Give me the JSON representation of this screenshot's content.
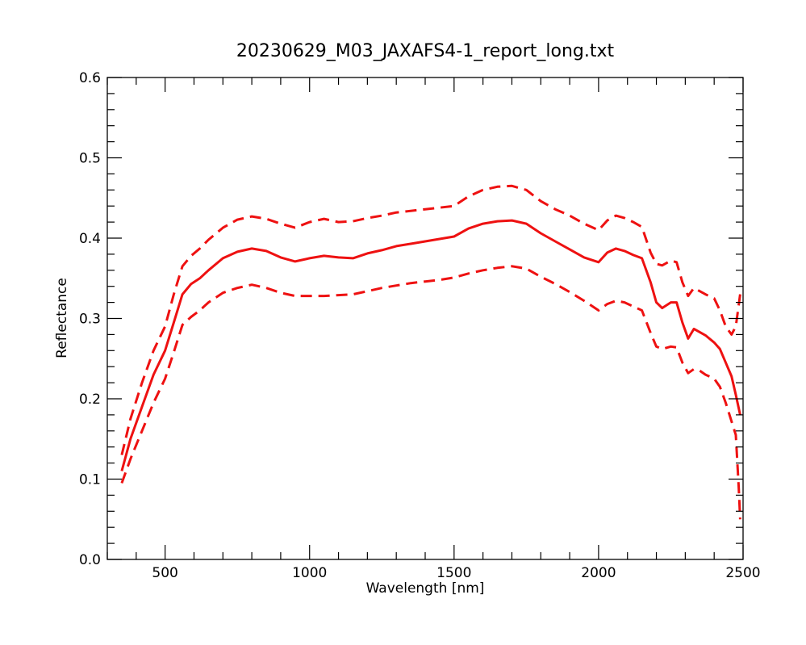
{
  "chart_data": {
    "type": "line",
    "title": "20230629_M03_JAXAFS4-1_report_long.txt",
    "xlabel": "Wavelength [nm]",
    "ylabel": "Reflectance",
    "xlim": [
      300,
      2500
    ],
    "ylim": [
      0.0,
      0.6
    ],
    "x_ticks": [
      {
        "value": 500,
        "label": "500"
      },
      {
        "value": 1000,
        "label": "1000"
      },
      {
        "value": 1500,
        "label": "1500"
      },
      {
        "value": 2000,
        "label": "2000"
      },
      {
        "value": 2500,
        "label": "2500"
      }
    ],
    "y_ticks": [
      {
        "value": 0.0,
        "label": "0.0"
      },
      {
        "value": 0.1,
        "label": "0.1"
      },
      {
        "value": 0.2,
        "label": "0.2"
      },
      {
        "value": 0.3,
        "label": "0.3"
      },
      {
        "value": 0.4,
        "label": "0.4"
      },
      {
        "value": 0.5,
        "label": "0.5"
      },
      {
        "value": 0.6,
        "label": "0.6"
      }
    ],
    "x_minor_step": 100,
    "y_minor_step": 0.02,
    "grid": false,
    "series": [
      {
        "style": "solid",
        "color": "#ee1111",
        "x": [
          350,
          380,
          420,
          460,
          500,
          530,
          560,
          590,
          620,
          650,
          700,
          750,
          800,
          850,
          900,
          950,
          1000,
          1050,
          1100,
          1150,
          1200,
          1250,
          1300,
          1350,
          1400,
          1450,
          1500,
          1550,
          1600,
          1650,
          1700,
          1750,
          1800,
          1850,
          1900,
          1950,
          2000,
          2030,
          2060,
          2090,
          2120,
          2150,
          2180,
          2200,
          2220,
          2250,
          2270,
          2290,
          2310,
          2330,
          2350,
          2370,
          2400,
          2420,
          2440,
          2460,
          2475,
          2490
        ],
        "y": [
          0.11,
          0.15,
          0.19,
          0.23,
          0.26,
          0.295,
          0.33,
          0.343,
          0.35,
          0.36,
          0.375,
          0.383,
          0.387,
          0.384,
          0.376,
          0.371,
          0.375,
          0.378,
          0.376,
          0.375,
          0.381,
          0.385,
          0.39,
          0.393,
          0.396,
          0.399,
          0.402,
          0.412,
          0.418,
          0.421,
          0.422,
          0.418,
          0.406,
          0.396,
          0.386,
          0.376,
          0.37,
          0.382,
          0.387,
          0.384,
          0.379,
          0.375,
          0.345,
          0.32,
          0.313,
          0.32,
          0.32,
          0.295,
          0.275,
          0.287,
          0.283,
          0.279,
          0.27,
          0.262,
          0.245,
          0.228,
          0.205,
          0.18
        ]
      },
      {
        "style": "dashed",
        "color": "#ee1111",
        "x": [
          350,
          380,
          420,
          460,
          500,
          530,
          560,
          590,
          620,
          650,
          700,
          750,
          800,
          850,
          900,
          950,
          1000,
          1050,
          1100,
          1150,
          1200,
          1250,
          1300,
          1350,
          1400,
          1450,
          1500,
          1550,
          1600,
          1650,
          1700,
          1750,
          1800,
          1850,
          1900,
          1950,
          2000,
          2030,
          2060,
          2090,
          2120,
          2150,
          2180,
          2200,
          2220,
          2250,
          2270,
          2290,
          2310,
          2330,
          2350,
          2370,
          2400,
          2420,
          2440,
          2460,
          2475,
          2490
        ],
        "y": [
          0.13,
          0.175,
          0.22,
          0.26,
          0.29,
          0.33,
          0.365,
          0.378,
          0.387,
          0.398,
          0.413,
          0.423,
          0.427,
          0.424,
          0.418,
          0.413,
          0.42,
          0.424,
          0.42,
          0.421,
          0.425,
          0.428,
          0.432,
          0.434,
          0.436,
          0.438,
          0.44,
          0.452,
          0.46,
          0.464,
          0.465,
          0.46,
          0.446,
          0.436,
          0.428,
          0.418,
          0.41,
          0.422,
          0.428,
          0.425,
          0.42,
          0.414,
          0.382,
          0.368,
          0.366,
          0.372,
          0.37,
          0.345,
          0.328,
          0.338,
          0.334,
          0.33,
          0.325,
          0.31,
          0.29,
          0.28,
          0.29,
          0.33
        ]
      },
      {
        "style": "dashed",
        "color": "#ee1111",
        "x": [
          350,
          380,
          420,
          460,
          500,
          530,
          560,
          590,
          620,
          650,
          700,
          750,
          800,
          850,
          900,
          950,
          1000,
          1050,
          1100,
          1150,
          1200,
          1250,
          1300,
          1350,
          1400,
          1450,
          1500,
          1550,
          1600,
          1650,
          1700,
          1750,
          1800,
          1850,
          1900,
          1950,
          2000,
          2030,
          2060,
          2090,
          2120,
          2150,
          2180,
          2200,
          2220,
          2250,
          2270,
          2290,
          2310,
          2330,
          2350,
          2370,
          2400,
          2420,
          2440,
          2460,
          2475,
          2485,
          2490
        ],
        "y": [
          0.095,
          0.125,
          0.16,
          0.195,
          0.225,
          0.258,
          0.292,
          0.302,
          0.31,
          0.32,
          0.332,
          0.338,
          0.342,
          0.338,
          0.332,
          0.328,
          0.328,
          0.328,
          0.329,
          0.33,
          0.334,
          0.338,
          0.341,
          0.344,
          0.346,
          0.348,
          0.351,
          0.356,
          0.36,
          0.363,
          0.365,
          0.362,
          0.352,
          0.343,
          0.333,
          0.322,
          0.31,
          0.318,
          0.322,
          0.32,
          0.315,
          0.31,
          0.282,
          0.265,
          0.262,
          0.265,
          0.264,
          0.245,
          0.232,
          0.237,
          0.235,
          0.23,
          0.225,
          0.215,
          0.195,
          0.172,
          0.155,
          0.09,
          0.05
        ]
      }
    ]
  }
}
